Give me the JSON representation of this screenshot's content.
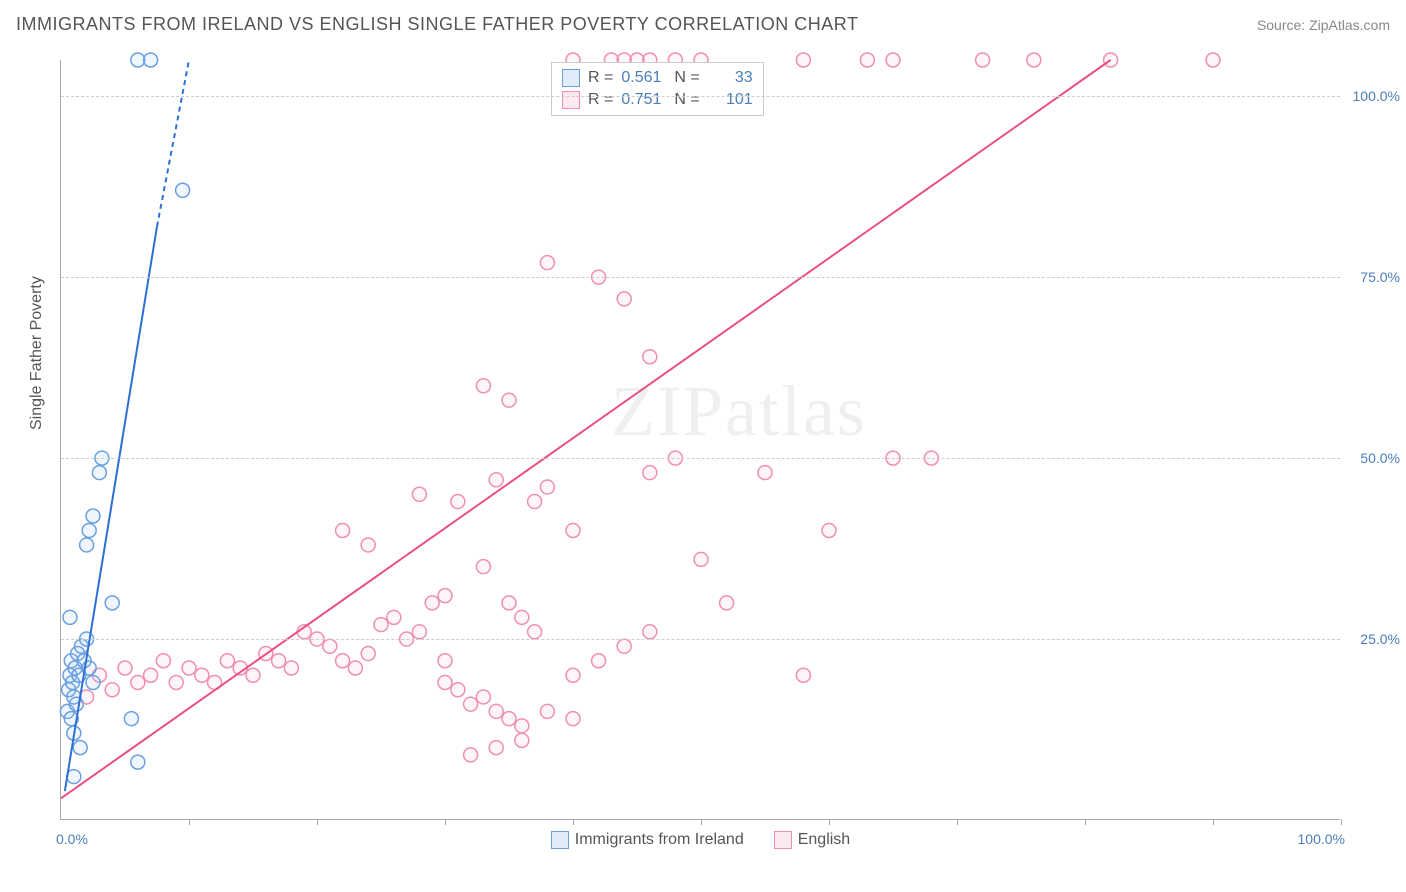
{
  "title": "IMMIGRANTS FROM IRELAND VS ENGLISH SINGLE FATHER POVERTY CORRELATION CHART",
  "source": "Source: ZipAtlas.com",
  "watermark": "ZIPatlas",
  "ylabel": "Single Father Poverty",
  "chart": {
    "type": "scatter",
    "xlim": [
      0,
      100
    ],
    "ylim": [
      0,
      105
    ],
    "background_color": "#ffffff",
    "grid_color": "#cccccc",
    "grid_dash": true,
    "yticks": [
      25,
      50,
      75,
      100
    ],
    "ytick_labels": [
      "25.0%",
      "50.0%",
      "75.0%",
      "100.0%"
    ],
    "xtick_origin": "0.0%",
    "xtick_max": "100.0%",
    "xtick_marks": [
      10,
      20,
      30,
      40,
      50,
      60,
      70,
      80,
      90,
      100
    ],
    "marker_radius": 7,
    "marker_stroke_width": 1.5,
    "marker_fill_opacity": 0.15,
    "line_width": 2
  },
  "series": {
    "ireland": {
      "label": "Immigrants from Ireland",
      "color_stroke": "#6aa0e0",
      "color_fill": "#9dc3f0",
      "trend_color": "#2e6fd6",
      "trend": {
        "x1": 0.3,
        "y1": 4,
        "x2": 7.5,
        "y2": 82
      },
      "trend_dash_extend": {
        "x1": 7.5,
        "y1": 82,
        "x2": 10,
        "y2": 105
      },
      "R": "0.561",
      "N": "33",
      "points": [
        [
          0.5,
          15
        ],
        [
          0.6,
          18
        ],
        [
          0.7,
          20
        ],
        [
          0.8,
          22
        ],
        [
          0.9,
          19
        ],
        [
          1.0,
          17
        ],
        [
          1.1,
          21
        ],
        [
          1.2,
          16
        ],
        [
          1.3,
          23
        ],
        [
          1.4,
          20
        ],
        [
          0.8,
          14
        ],
        [
          1.0,
          12
        ],
        [
          1.5,
          10
        ],
        [
          1.6,
          24
        ],
        [
          1.8,
          22
        ],
        [
          2.0,
          25
        ],
        [
          2.2,
          21
        ],
        [
          2.5,
          19
        ],
        [
          2.0,
          38
        ],
        [
          2.2,
          40
        ],
        [
          2.5,
          42
        ],
        [
          3.0,
          48
        ],
        [
          3.2,
          50
        ],
        [
          4.0,
          30
        ],
        [
          5.5,
          14
        ],
        [
          6.0,
          8
        ],
        [
          1.0,
          6
        ],
        [
          6.0,
          105
        ],
        [
          7.0,
          105
        ],
        [
          9.5,
          87
        ],
        [
          0.7,
          28
        ]
      ]
    },
    "english": {
      "label": "English",
      "color_stroke": "#f08fb0",
      "color_fill": "#f7bcd0",
      "trend_color": "#e94f86",
      "trend": {
        "x1": 0,
        "y1": 3,
        "x2": 82,
        "y2": 105
      },
      "R": "0.751",
      "N": "101",
      "points": [
        [
          2,
          17
        ],
        [
          3,
          20
        ],
        [
          4,
          18
        ],
        [
          5,
          21
        ],
        [
          6,
          19
        ],
        [
          7,
          20
        ],
        [
          8,
          22
        ],
        [
          9,
          19
        ],
        [
          10,
          21
        ],
        [
          11,
          20
        ],
        [
          12,
          19
        ],
        [
          13,
          22
        ],
        [
          14,
          21
        ],
        [
          15,
          20
        ],
        [
          16,
          23
        ],
        [
          17,
          22
        ],
        [
          18,
          21
        ],
        [
          19,
          26
        ],
        [
          20,
          25
        ],
        [
          21,
          24
        ],
        [
          22,
          22
        ],
        [
          23,
          21
        ],
        [
          24,
          23
        ],
        [
          25,
          27
        ],
        [
          26,
          28
        ],
        [
          27,
          25
        ],
        [
          28,
          26
        ],
        [
          29,
          30
        ],
        [
          22,
          40
        ],
        [
          24,
          38
        ],
        [
          30,
          22
        ],
        [
          30,
          31
        ],
        [
          30,
          19
        ],
        [
          31,
          18
        ],
        [
          32,
          16
        ],
        [
          33,
          17
        ],
        [
          34,
          15
        ],
        [
          35,
          14
        ],
        [
          36,
          13
        ],
        [
          28,
          45
        ],
        [
          31,
          44
        ],
        [
          33,
          35
        ],
        [
          34,
          47
        ],
        [
          35,
          30
        ],
        [
          36,
          28
        ],
        [
          37,
          26
        ],
        [
          33,
          60
        ],
        [
          35,
          58
        ],
        [
          37,
          44
        ],
        [
          38,
          46
        ],
        [
          40,
          40
        ],
        [
          38,
          77
        ],
        [
          42,
          75
        ],
        [
          44,
          72
        ],
        [
          46,
          64
        ],
        [
          40,
          20
        ],
        [
          42,
          22
        ],
        [
          44,
          24
        ],
        [
          46,
          26
        ],
        [
          48,
          50
        ],
        [
          50,
          36
        ],
        [
          52,
          30
        ],
        [
          38,
          15
        ],
        [
          40,
          14
        ],
        [
          36,
          11
        ],
        [
          34,
          10
        ],
        [
          32,
          9
        ],
        [
          46,
          48
        ],
        [
          55,
          48
        ],
        [
          58,
          20
        ],
        [
          60,
          40
        ],
        [
          65,
          50
        ],
        [
          68,
          50
        ],
        [
          40,
          105
        ],
        [
          43,
          105
        ],
        [
          44,
          105
        ],
        [
          45,
          105
        ],
        [
          46,
          105
        ],
        [
          48,
          105
        ],
        [
          50,
          105
        ],
        [
          58,
          105
        ],
        [
          63,
          105
        ],
        [
          65,
          105
        ],
        [
          76,
          105
        ],
        [
          82,
          105
        ],
        [
          90,
          105
        ],
        [
          72,
          105
        ]
      ]
    }
  },
  "legend_stats": {
    "rows": [
      {
        "swatch_key": "ireland",
        "R": "0.561",
        "N": "33"
      },
      {
        "swatch_key": "english",
        "R": "0.751",
        "N": "101"
      }
    ]
  }
}
